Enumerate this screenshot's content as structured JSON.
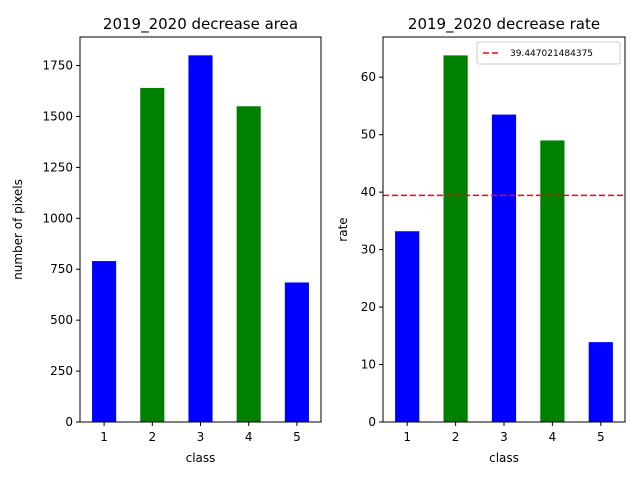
{
  "chart_data": [
    {
      "type": "bar",
      "title": "2019_2020 decrease area",
      "xlabel": "class",
      "ylabel": "number of pixels",
      "categories": [
        "1",
        "2",
        "3",
        "4",
        "5"
      ],
      "values": [
        790,
        1640,
        1800,
        1550,
        685
      ],
      "colors": [
        "#0000ff",
        "#008000",
        "#0000ff",
        "#008000",
        "#0000ff"
      ],
      "ylim": [
        0,
        1890
      ],
      "yticks": [
        0,
        250,
        500,
        750,
        1000,
        1250,
        1500,
        1750
      ],
      "ytick_labels": [
        "0",
        "250",
        "500",
        "750",
        "1000",
        "1250",
        "1500",
        "1750"
      ],
      "grid": false
    },
    {
      "type": "bar",
      "title": "2019_2020 decrease rate",
      "xlabel": "class",
      "ylabel": "rate",
      "categories": [
        "1",
        "2",
        "3",
        "4",
        "5"
      ],
      "values": [
        33.2,
        63.8,
        53.5,
        49.0,
        13.9
      ],
      "colors": [
        "#0000ff",
        "#008000",
        "#0000ff",
        "#008000",
        "#0000ff"
      ],
      "ylim": [
        0,
        67
      ],
      "yticks": [
        0,
        10,
        20,
        30,
        40,
        50,
        60
      ],
      "ytick_labels": [
        "0",
        "10",
        "20",
        "30",
        "40",
        "50",
        "60"
      ],
      "grid": false,
      "hline": {
        "value": 39.447021484375,
        "label": "39.447021484375",
        "color": "#ff0000",
        "style": "dashed"
      },
      "legend": {
        "placement": "top-right",
        "entries": [
          "39.447021484375"
        ]
      }
    }
  ]
}
